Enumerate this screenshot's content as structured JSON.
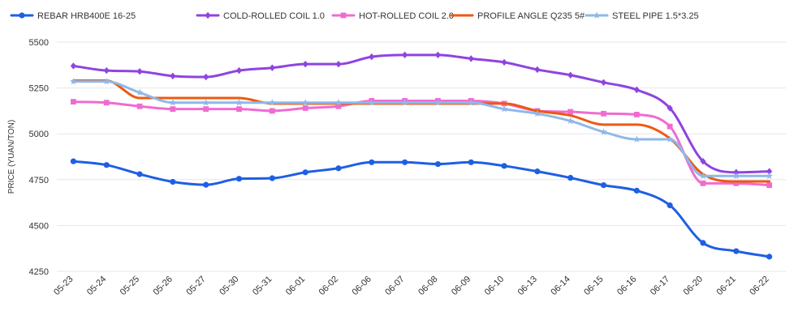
{
  "chart_data": {
    "type": "line",
    "title": "",
    "xlabel": "",
    "ylabel": "PRICE (YUAN/TON)",
    "ylim": [
      4250,
      5500
    ],
    "yticks": [
      4250,
      4500,
      4750,
      5000,
      5250,
      5500
    ],
    "grid": "horizontal",
    "legend_position": "top",
    "categories": [
      "05-23",
      "05-24",
      "05-25",
      "05-26",
      "05-27",
      "05-30",
      "05-31",
      "06-01",
      "06-02",
      "06-06",
      "06-07",
      "06-08",
      "06-09",
      "06-10",
      "06-13",
      "06-14",
      "06-15",
      "06-16",
      "06-17",
      "06-20",
      "06-21",
      "06-22"
    ],
    "series": [
      {
        "name": "REBAR HRB400E 16-25",
        "color": "#1e5fe3",
        "marker": "circle",
        "values": [
          4850,
          4830,
          4780,
          4738,
          4722,
          4755,
          4758,
          4790,
          4812,
          4845,
          4845,
          4835,
          4845,
          4825,
          4795,
          4760,
          4720,
          4690,
          4610,
          4405,
          4360,
          4330
        ]
      },
      {
        "name": "COLD-ROLLED COIL 1.0",
        "color": "#8e44e0",
        "marker": "diamond",
        "values": [
          5370,
          5345,
          5340,
          5315,
          5310,
          5345,
          5360,
          5380,
          5380,
          5420,
          5430,
          5430,
          5410,
          5390,
          5350,
          5320,
          5280,
          5240,
          5140,
          4850,
          4790,
          4795
        ]
      },
      {
        "name": "HOT-ROLLED COIL 2.0",
        "color": "#f06bd0",
        "marker": "square",
        "values": [
          5175,
          5170,
          5150,
          5135,
          5135,
          5135,
          5125,
          5140,
          5150,
          5180,
          5180,
          5180,
          5180,
          5165,
          5125,
          5120,
          5110,
          5105,
          5040,
          4730,
          4730,
          4720
        ]
      },
      {
        "name": "PROFILE ANGLE Q235 5#",
        "color": "#ec5a12",
        "marker": "none",
        "values": [
          5290,
          5290,
          5195,
          5195,
          5195,
          5195,
          5165,
          5165,
          5165,
          5165,
          5165,
          5165,
          5165,
          5165,
          5125,
          5100,
          5050,
          5050,
          4975,
          4780,
          4740,
          4740
        ]
      },
      {
        "name": "STEEL PIPE 1.5*3.25",
        "color": "#8fb8ea",
        "marker": "star",
        "values": [
          5285,
          5285,
          5225,
          5170,
          5170,
          5170,
          5170,
          5170,
          5170,
          5170,
          5170,
          5170,
          5170,
          5135,
          5110,
          5070,
          5010,
          4970,
          4970,
          4770,
          4770,
          4770
        ]
      }
    ]
  }
}
